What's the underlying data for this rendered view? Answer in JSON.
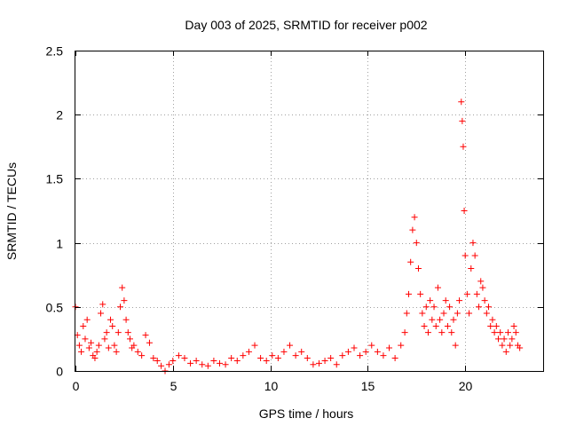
{
  "chart_data": {
    "type": "scatter",
    "title": "Day 003 of 2025, SRMTID for receiver p002",
    "xlabel": "GPS time / hours",
    "ylabel": "SRMTID / TECUs",
    "xlim": [
      0,
      24
    ],
    "ylim": [
      0,
      2.5
    ],
    "x_ticks": [
      0,
      5,
      10,
      15,
      20
    ],
    "x_tick_labels": [
      "0",
      "5",
      "10",
      "15",
      "20"
    ],
    "y_ticks": [
      0,
      0.5,
      1,
      1.5,
      2,
      2.5
    ],
    "y_tick_labels": [
      "0",
      "0.5",
      "1",
      "1.5",
      "2",
      "2.5"
    ],
    "grid": true,
    "marker": "+",
    "color": "#ff0000",
    "series": [
      {
        "name": "SRMTID",
        "x": [
          0,
          0.1,
          0.2,
          0.3,
          0.4,
          0.5,
          0.6,
          0.7,
          0.8,
          0.9,
          1.0,
          1.1,
          1.2,
          1.3,
          1.4,
          1.5,
          1.6,
          1.7,
          1.8,
          1.9,
          2.0,
          2.1,
          2.2,
          2.3,
          2.4,
          2.5,
          2.6,
          2.7,
          2.8,
          2.9,
          3.0,
          3.2,
          3.4,
          3.6,
          3.8,
          4.0,
          4.2,
          4.4,
          4.6,
          4.8,
          5.0,
          5.3,
          5.6,
          5.9,
          6.2,
          6.5,
          6.8,
          7.1,
          7.4,
          7.7,
          8.0,
          8.3,
          8.6,
          8.9,
          9.2,
          9.5,
          9.8,
          10.1,
          10.4,
          10.7,
          11.0,
          11.3,
          11.6,
          11.9,
          12.2,
          12.5,
          12.8,
          13.1,
          13.4,
          13.7,
          14.0,
          14.3,
          14.6,
          14.9,
          15.2,
          15.5,
          15.8,
          16.1,
          16.4,
          16.7,
          16.9,
          17.0,
          17.1,
          17.2,
          17.3,
          17.4,
          17.5,
          17.6,
          17.7,
          17.8,
          17.9,
          18.0,
          18.1,
          18.2,
          18.3,
          18.4,
          18.5,
          18.6,
          18.7,
          18.8,
          18.9,
          19.0,
          19.1,
          19.2,
          19.3,
          19.4,
          19.5,
          19.6,
          19.7,
          19.8,
          19.85,
          19.9,
          19.95,
          20.0,
          20.1,
          20.2,
          20.3,
          20.4,
          20.5,
          20.6,
          20.7,
          20.8,
          20.9,
          21.0,
          21.1,
          21.2,
          21.3,
          21.4,
          21.5,
          21.6,
          21.7,
          21.8,
          21.9,
          22.0,
          22.1,
          22.2,
          22.3,
          22.4,
          22.5,
          22.6,
          22.7,
          22.8
        ],
        "y": [
          0.5,
          0.28,
          0.2,
          0.15,
          0.35,
          0.25,
          0.4,
          0.18,
          0.22,
          0.12,
          0.1,
          0.15,
          0.2,
          0.45,
          0.52,
          0.25,
          0.3,
          0.18,
          0.4,
          0.35,
          0.2,
          0.15,
          0.3,
          0.5,
          0.65,
          0.55,
          0.4,
          0.3,
          0.25,
          0.18,
          0.2,
          0.15,
          0.12,
          0.28,
          0.22,
          0.1,
          0.08,
          0.04,
          0.0,
          0.05,
          0.08,
          0.12,
          0.1,
          0.06,
          0.08,
          0.05,
          0.04,
          0.08,
          0.06,
          0.05,
          0.1,
          0.08,
          0.12,
          0.15,
          0.2,
          0.1,
          0.08,
          0.12,
          0.1,
          0.15,
          0.2,
          0.12,
          0.15,
          0.1,
          0.05,
          0.06,
          0.08,
          0.1,
          0.05,
          0.12,
          0.15,
          0.18,
          0.12,
          0.15,
          0.2,
          0.15,
          0.12,
          0.18,
          0.1,
          0.2,
          0.3,
          0.45,
          0.6,
          0.85,
          1.1,
          1.2,
          1.0,
          0.8,
          0.6,
          0.45,
          0.35,
          0.5,
          0.3,
          0.55,
          0.4,
          0.5,
          0.35,
          0.65,
          0.4,
          0.3,
          0.45,
          0.55,
          0.35,
          0.5,
          0.3,
          0.4,
          0.2,
          0.45,
          0.55,
          2.1,
          1.95,
          1.75,
          1.25,
          0.9,
          0.6,
          0.45,
          0.8,
          1.0,
          0.9,
          0.6,
          0.5,
          0.7,
          0.65,
          0.55,
          0.45,
          0.5,
          0.35,
          0.4,
          0.3,
          0.35,
          0.25,
          0.3,
          0.2,
          0.25,
          0.15,
          0.3,
          0.2,
          0.25,
          0.35,
          0.3,
          0.2,
          0.18
        ]
      }
    ]
  }
}
